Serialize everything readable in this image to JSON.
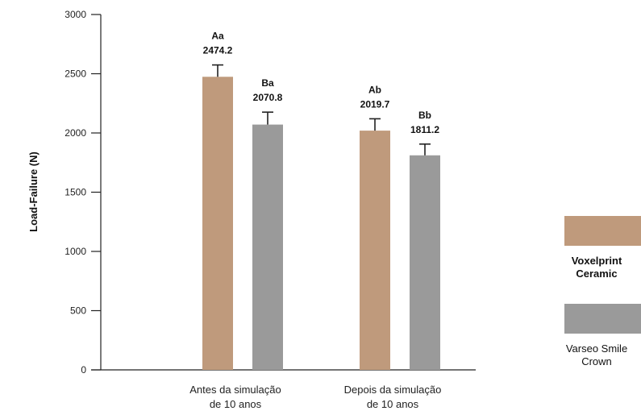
{
  "chart_data": {
    "type": "bar",
    "ylabel": "Load-Failure (N)",
    "ylim": [
      0,
      3000
    ],
    "yticks": [
      0,
      500,
      1000,
      1500,
      2000,
      2500,
      3000
    ],
    "categories": [
      [
        "Antes da simulação",
        "de 10 anos"
      ],
      [
        "Depois da simulação",
        "de 10 anos"
      ]
    ],
    "series": [
      {
        "name": [
          "Voxelprint",
          "Ceramic"
        ],
        "color": "#bf9a7c",
        "values": [
          2474.2,
          2019.7
        ],
        "errors": [
          100,
          100
        ],
        "letters": [
          "Aa",
          "Ab"
        ],
        "value_labels": [
          "2474.2",
          "2019.7"
        ]
      },
      {
        "name": [
          "Varseo Smile",
          "Crown"
        ],
        "color": "#9a9a9a",
        "values": [
          2070.8,
          1811.2
        ],
        "errors": [
          105,
          95
        ],
        "letters": [
          "Ba",
          "Bb"
        ],
        "value_labels": [
          "2070.8",
          "1811.2"
        ]
      }
    ],
    "legend": "right",
    "grid": false
  }
}
